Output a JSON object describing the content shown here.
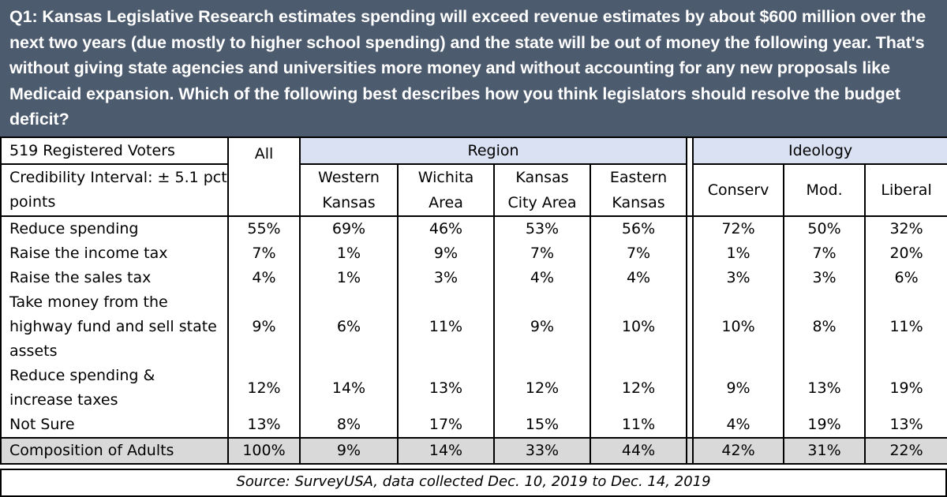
{
  "question": "Q1: Kansas Legislative Research estimates spending will exceed revenue estimates by about $600 million over the next two years (due mostly to higher school spending) and the state will be out of money the following year. That's without giving state agencies and universities more money and without accounting for any new proposals like Medicaid expansion. Which of the following best describes how you think legislators should resolve the budget deficit?",
  "sample": "519 Registered Voters",
  "credibility_line1": "Credibility Interval: ± 5.1 pct",
  "credibility_line2": "points",
  "all_label": "All",
  "groups": {
    "region": "Region",
    "ideology": "Ideology"
  },
  "columns": [
    {
      "line1": "Western",
      "line2": "Kansas"
    },
    {
      "line1": "Wichita",
      "line2": "Area"
    },
    {
      "line1": "Kansas",
      "line2": "City Area"
    },
    {
      "line1": "Eastern",
      "line2": "Kansas"
    },
    {
      "line1": "Conserv",
      "line2": ""
    },
    {
      "line1": "Mod.",
      "line2": ""
    },
    {
      "line1": "Liberal",
      "line2": ""
    }
  ],
  "rows": [
    {
      "label": [
        "Reduce spending"
      ],
      "values": [
        "55%",
        "69%",
        "46%",
        "53%",
        "56%",
        "72%",
        "50%",
        "32%"
      ]
    },
    {
      "label": [
        "Raise the income tax"
      ],
      "values": [
        "7%",
        "1%",
        "9%",
        "7%",
        "7%",
        "1%",
        "7%",
        "20%"
      ]
    },
    {
      "label": [
        "Raise the sales tax"
      ],
      "values": [
        "4%",
        "1%",
        "3%",
        "4%",
        "4%",
        "3%",
        "3%",
        "6%"
      ]
    },
    {
      "label": [
        "Take money from the",
        "highway fund and sell state",
        "assets"
      ],
      "values": [
        "9%",
        "6%",
        "11%",
        "9%",
        "10%",
        "10%",
        "8%",
        "11%"
      ]
    },
    {
      "label": [
        "Reduce spending &",
        "increase taxes"
      ],
      "values": [
        "12%",
        "14%",
        "13%",
        "12%",
        "12%",
        "9%",
        "13%",
        "19%"
      ]
    },
    {
      "label": [
        "Not Sure"
      ],
      "values": [
        "13%",
        "8%",
        "17%",
        "15%",
        "11%",
        "4%",
        "19%",
        "13%"
      ]
    }
  ],
  "composition": {
    "label": "Composition of Adults",
    "values": [
      "100%",
      "9%",
      "14%",
      "33%",
      "44%",
      "42%",
      "31%",
      "22%"
    ]
  },
  "source": "Source: SurveyUSA, data collected Dec. 10, 2019 to Dec. 14, 2019",
  "colors": {
    "header_bg": "#4d5b6e",
    "group_header_bg": "#d9e1f2",
    "composition_bg": "#d9d9d9"
  }
}
